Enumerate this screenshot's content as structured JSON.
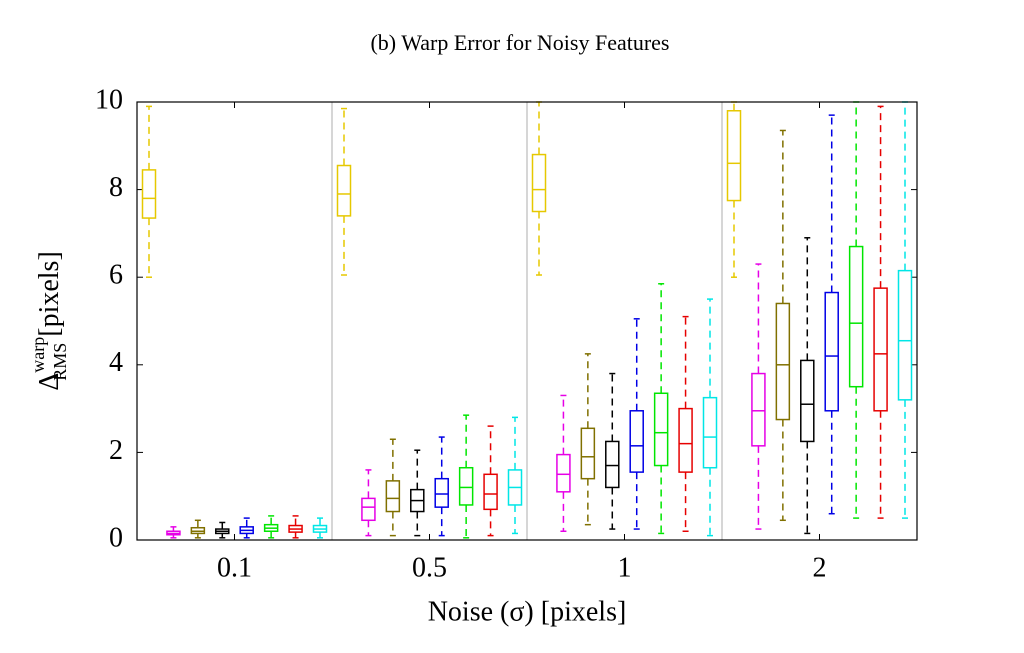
{
  "chart_data": {
    "type": "box",
    "title": "(b) Warp Error for Noisy Features",
    "xlabel": "Noise (σ) [pixels]",
    "ylabel": {
      "base": "Δ",
      "sup": "warp",
      "sub": "RMS",
      "unit": "[pixels]"
    },
    "categories": [
      "0.1",
      "0.5",
      "1",
      "2"
    ],
    "ylim": [
      0,
      10
    ],
    "yticks": [
      0,
      2,
      4,
      6,
      8,
      10
    ],
    "series": [
      {
        "color": "#e6c800",
        "min": [
          6.0,
          6.05,
          6.05,
          6.0
        ],
        "q1": [
          7.35,
          7.4,
          7.5,
          7.75
        ],
        "median": [
          7.8,
          7.9,
          8.0,
          8.6
        ],
        "q3": [
          8.45,
          8.55,
          8.8,
          9.8
        ],
        "max": [
          9.9,
          9.85,
          10,
          10
        ]
      },
      {
        "color": "#e600e6",
        "min": [
          0.05,
          0.1,
          0.2,
          0.25
        ],
        "q1": [
          0.12,
          0.45,
          1.1,
          2.15
        ],
        "median": [
          0.15,
          0.75,
          1.5,
          2.95
        ],
        "q3": [
          0.2,
          0.95,
          1.95,
          3.8
        ],
        "max": [
          0.3,
          1.6,
          3.3,
          6.3
        ]
      },
      {
        "color": "#807000",
        "min": [
          0.05,
          0.1,
          0.35,
          0.45
        ],
        "q1": [
          0.15,
          0.65,
          1.4,
          2.75
        ],
        "median": [
          0.2,
          0.95,
          1.9,
          4.0
        ],
        "q3": [
          0.28,
          1.35,
          2.55,
          5.4
        ],
        "max": [
          0.45,
          2.3,
          4.25,
          9.35
        ]
      },
      {
        "color": "#000000",
        "min": [
          0.05,
          0.1,
          0.25,
          0.15
        ],
        "q1": [
          0.15,
          0.65,
          1.2,
          2.25
        ],
        "median": [
          0.2,
          0.9,
          1.7,
          3.1
        ],
        "q3": [
          0.25,
          1.15,
          2.25,
          4.1
        ],
        "max": [
          0.4,
          2.05,
          3.8,
          6.9
        ]
      },
      {
        "color": "#0000e6",
        "min": [
          0.05,
          0.1,
          0.25,
          0.6
        ],
        "q1": [
          0.15,
          0.75,
          1.55,
          2.95
        ],
        "median": [
          0.22,
          1.05,
          2.15,
          4.2
        ],
        "q3": [
          0.3,
          1.4,
          2.95,
          5.65
        ],
        "max": [
          0.5,
          2.35,
          5.05,
          9.7
        ]
      },
      {
        "color": "#00e600",
        "min": [
          0.05,
          0.05,
          0.15,
          0.5
        ],
        "q1": [
          0.2,
          0.8,
          1.7,
          3.5
        ],
        "median": [
          0.27,
          1.2,
          2.45,
          4.95
        ],
        "q3": [
          0.35,
          1.65,
          3.35,
          6.7
        ],
        "max": [
          0.55,
          2.85,
          5.85,
          10
        ]
      },
      {
        "color": "#e60000",
        "min": [
          0.05,
          0.1,
          0.2,
          0.5
        ],
        "q1": [
          0.18,
          0.7,
          1.55,
          2.95
        ],
        "median": [
          0.25,
          1.05,
          2.2,
          4.25
        ],
        "q3": [
          0.33,
          1.5,
          3.0,
          5.75
        ],
        "max": [
          0.55,
          2.6,
          5.1,
          9.9
        ]
      },
      {
        "color": "#00e6e6",
        "min": [
          0.05,
          0.15,
          0.1,
          0.5
        ],
        "q1": [
          0.18,
          0.8,
          1.65,
          3.2
        ],
        "median": [
          0.25,
          1.2,
          2.35,
          4.55
        ],
        "q3": [
          0.33,
          1.6,
          3.25,
          6.15
        ],
        "max": [
          0.5,
          2.8,
          5.5,
          10
        ]
      }
    ]
  }
}
